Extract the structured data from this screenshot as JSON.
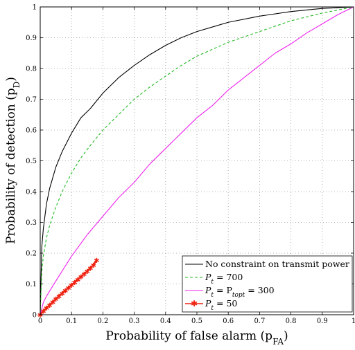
{
  "chart_data": {
    "type": "line",
    "xlabel": "Probability of false alarm (p",
    "xlabel_sub": "FA",
    "xlabel_end": ")",
    "ylabel": "Probability of detection (p",
    "ylabel_sub": "D",
    "ylabel_end": ")",
    "xlim": [
      0,
      1
    ],
    "ylim": [
      0,
      1
    ],
    "grid": true,
    "legend_position": "bottom-right",
    "xticks": [
      "0",
      "0.1",
      "0.2",
      "0.3",
      "0.4",
      "0.5",
      "0.6",
      "0.7",
      "0.8",
      "0.9",
      "1"
    ],
    "yticks": [
      "0",
      "0.1",
      "0.2",
      "0.3",
      "0.4",
      "0.5",
      "0.6",
      "0.7",
      "0.8",
      "0.9",
      "1"
    ],
    "series": [
      {
        "name": "No constraint on transmit power",
        "color": "#000000",
        "style": "solid",
        "x": [
          0,
          0.005,
          0.01,
          0.02,
          0.03,
          0.05,
          0.07,
          0.1,
          0.13,
          0.16,
          0.2,
          0.25,
          0.3,
          0.35,
          0.4,
          0.45,
          0.5,
          0.55,
          0.6,
          0.7,
          0.8,
          0.9,
          1.0
        ],
        "y": [
          0,
          0.22,
          0.28,
          0.36,
          0.41,
          0.48,
          0.53,
          0.59,
          0.64,
          0.67,
          0.72,
          0.77,
          0.81,
          0.845,
          0.875,
          0.9,
          0.92,
          0.935,
          0.95,
          0.97,
          0.985,
          0.995,
          1.0
        ]
      },
      {
        "name": "P_t = 700",
        "name_main": "P",
        "name_sub": "t",
        "name_rest": " = 700",
        "color": "#22bb22",
        "style": "dashed",
        "x": [
          0,
          0.005,
          0.01,
          0.02,
          0.03,
          0.05,
          0.07,
          0.1,
          0.13,
          0.16,
          0.2,
          0.25,
          0.3,
          0.35,
          0.4,
          0.45,
          0.5,
          0.6,
          0.7,
          0.8,
          0.9,
          1.0
        ],
        "y": [
          0,
          0.14,
          0.19,
          0.25,
          0.29,
          0.35,
          0.4,
          0.46,
          0.51,
          0.55,
          0.6,
          0.65,
          0.7,
          0.74,
          0.775,
          0.81,
          0.84,
          0.885,
          0.92,
          0.955,
          0.98,
          1.0
        ]
      },
      {
        "name": "P_t = P_topt = 300",
        "name_main": "P",
        "name_sub": "t",
        "name_mid": " = P",
        "name_sub2": "topt",
        "name_rest": " = 300",
        "color": "#ee22ee",
        "style": "solid",
        "x": [
          0,
          0.01,
          0.02,
          0.05,
          0.1,
          0.15,
          0.2,
          0.25,
          0.3,
          0.35,
          0.4,
          0.45,
          0.5,
          0.55,
          0.6,
          0.65,
          0.7,
          0.75,
          0.8,
          0.85,
          0.9,
          0.95,
          1.0
        ],
        "y": [
          0,
          0.04,
          0.06,
          0.11,
          0.19,
          0.26,
          0.32,
          0.38,
          0.43,
          0.49,
          0.54,
          0.59,
          0.64,
          0.68,
          0.73,
          0.77,
          0.81,
          0.85,
          0.88,
          0.915,
          0.945,
          0.975,
          1.0
        ]
      },
      {
        "name": "P_t = 50",
        "name_main": "P",
        "name_sub": "t",
        "name_rest": " = 50",
        "color": "#ee2211",
        "style": "solid-star",
        "x": [
          0,
          0.01,
          0.02,
          0.03,
          0.04,
          0.05,
          0.06,
          0.07,
          0.08,
          0.09,
          0.1,
          0.11,
          0.12,
          0.13,
          0.14,
          0.15,
          0.16,
          0.17,
          0.18
        ],
        "y": [
          0,
          0.012,
          0.022,
          0.032,
          0.042,
          0.052,
          0.061,
          0.07,
          0.079,
          0.088,
          0.097,
          0.106,
          0.115,
          0.124,
          0.133,
          0.142,
          0.152,
          0.162,
          0.178
        ]
      }
    ]
  }
}
